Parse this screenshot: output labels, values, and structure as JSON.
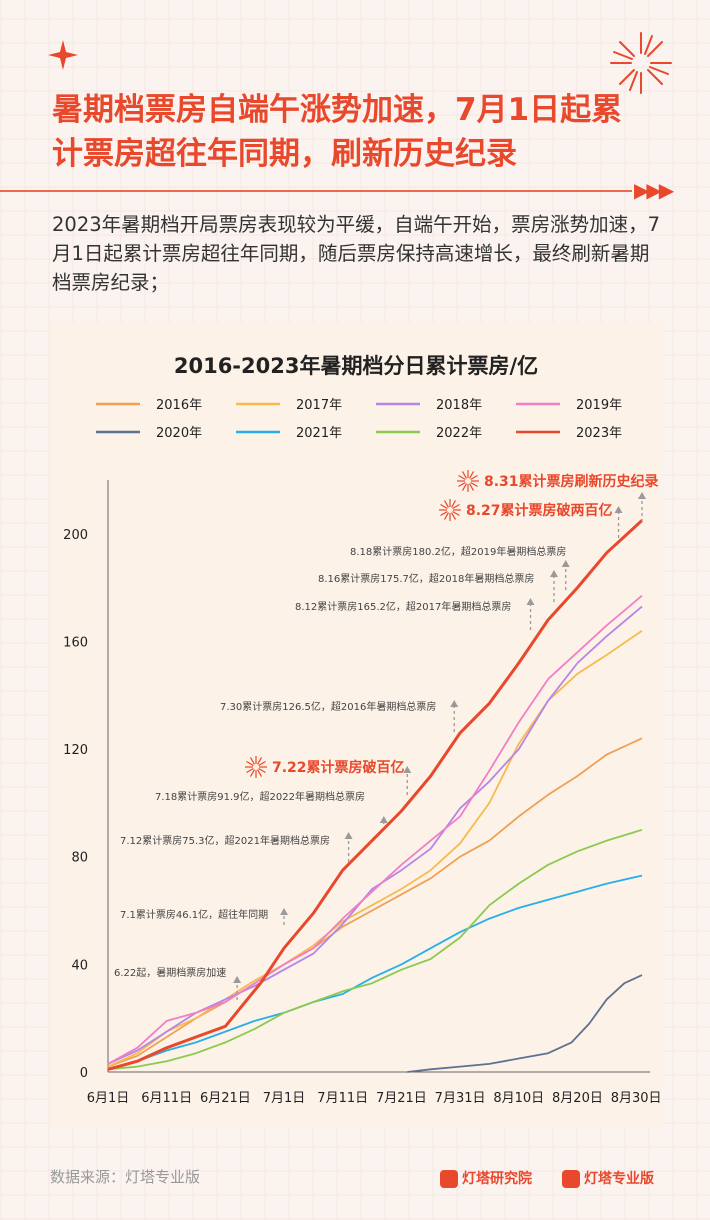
{
  "page": {
    "title": "暑期档票房自端午涨势加速，7月1日起累计票房超往年同期，刷新历史纪录",
    "summary": "2023年暑期档开局票房表现较为平缓，自端午开始，票房涨势加速，7月1日起累计票房超往年同期，随后票房保持高速增长，最终刷新暑期档票房纪录；",
    "source": "数据来源：灯塔专业版",
    "logo1": "灯塔研究院",
    "logo2": "灯塔专业版"
  },
  "colors": {
    "accent": "#e8482b",
    "2016": "#f0a056",
    "2017": "#f6bb4c",
    "2018": "#b586e6",
    "2019": "#ef7fc7",
    "2020": "#5e7190",
    "2021": "#28aee8",
    "2022": "#8cc950",
    "2023": "#e8482b"
  },
  "chart_data": {
    "type": "line",
    "title": "2016-2023年暑期档分日累计票房/亿",
    "xlabel": "",
    "ylabel": "",
    "ylim": [
      0,
      220
    ],
    "xlim": [
      1,
      92
    ],
    "x_unit": "day of summer season (6月1日 = 1)",
    "yticks": [
      0,
      40,
      80,
      120,
      160,
      200
    ],
    "xticks": [
      {
        "x": 1,
        "label": "6月1日"
      },
      {
        "x": 11,
        "label": "6月11日"
      },
      {
        "x": 21,
        "label": "6月21日"
      },
      {
        "x": 31,
        "label": "7月1日"
      },
      {
        "x": 41,
        "label": "7月11日"
      },
      {
        "x": 51,
        "label": "7月21日"
      },
      {
        "x": 61,
        "label": "7月31日"
      },
      {
        "x": 71,
        "label": "8月10日"
      },
      {
        "x": 81,
        "label": "8月20日"
      },
      {
        "x": 91,
        "label": "8月30日"
      }
    ],
    "legend_position": "top",
    "series": [
      {
        "name": "2016年",
        "key": "2016",
        "points": [
          [
            1,
            2
          ],
          [
            6,
            6
          ],
          [
            11,
            13
          ],
          [
            16,
            20
          ],
          [
            21,
            26
          ],
          [
            26,
            33
          ],
          [
            31,
            40
          ],
          [
            36,
            46
          ],
          [
            41,
            54
          ],
          [
            46,
            60
          ],
          [
            51,
            66
          ],
          [
            56,
            72
          ],
          [
            61,
            80
          ],
          [
            66,
            86
          ],
          [
            71,
            95
          ],
          [
            76,
            103
          ],
          [
            81,
            110
          ],
          [
            86,
            118
          ],
          [
            92,
            124
          ]
        ]
      },
      {
        "name": "2017年",
        "key": "2017",
        "points": [
          [
            1,
            2
          ],
          [
            6,
            7
          ],
          [
            11,
            15
          ],
          [
            16,
            20
          ],
          [
            21,
            27
          ],
          [
            26,
            34
          ],
          [
            31,
            40
          ],
          [
            36,
            47
          ],
          [
            41,
            56
          ],
          [
            46,
            62
          ],
          [
            51,
            68
          ],
          [
            56,
            75
          ],
          [
            61,
            85
          ],
          [
            66,
            100
          ],
          [
            71,
            122
          ],
          [
            76,
            138
          ],
          [
            81,
            148
          ],
          [
            86,
            155
          ],
          [
            92,
            164
          ]
        ]
      },
      {
        "name": "2018年",
        "key": "2018",
        "points": [
          [
            1,
            3
          ],
          [
            6,
            8
          ],
          [
            11,
            15
          ],
          [
            16,
            22
          ],
          [
            21,
            27
          ],
          [
            26,
            32
          ],
          [
            31,
            38
          ],
          [
            36,
            44
          ],
          [
            41,
            55
          ],
          [
            46,
            68
          ],
          [
            51,
            75
          ],
          [
            56,
            83
          ],
          [
            61,
            98
          ],
          [
            66,
            108
          ],
          [
            71,
            120
          ],
          [
            76,
            138
          ],
          [
            81,
            152
          ],
          [
            86,
            162
          ],
          [
            92,
            173
          ]
        ]
      },
      {
        "name": "2019年",
        "key": "2019",
        "points": [
          [
            1,
            3
          ],
          [
            6,
            9
          ],
          [
            11,
            19
          ],
          [
            16,
            22
          ],
          [
            21,
            26
          ],
          [
            26,
            33
          ],
          [
            31,
            40
          ],
          [
            36,
            46
          ],
          [
            41,
            57
          ],
          [
            46,
            67
          ],
          [
            51,
            77
          ],
          [
            56,
            86
          ],
          [
            61,
            95
          ],
          [
            66,
            112
          ],
          [
            71,
            130
          ],
          [
            76,
            146
          ],
          [
            81,
            156
          ],
          [
            86,
            166
          ],
          [
            92,
            177
          ]
        ]
      },
      {
        "name": "2020年",
        "key": "2020",
        "points": [
          [
            52,
            0
          ],
          [
            56,
            1
          ],
          [
            61,
            2
          ],
          [
            66,
            3
          ],
          [
            71,
            5
          ],
          [
            76,
            7
          ],
          [
            80,
            11
          ],
          [
            83,
            18
          ],
          [
            86,
            27
          ],
          [
            89,
            33
          ],
          [
            92,
            36
          ]
        ]
      },
      {
        "name": "2021年",
        "key": "2021",
        "points": [
          [
            1,
            1
          ],
          [
            6,
            4
          ],
          [
            11,
            8
          ],
          [
            16,
            11
          ],
          [
            21,
            15
          ],
          [
            26,
            19
          ],
          [
            31,
            22
          ],
          [
            36,
            26
          ],
          [
            41,
            29
          ],
          [
            46,
            35
          ],
          [
            51,
            40
          ],
          [
            56,
            46
          ],
          [
            61,
            52
          ],
          [
            66,
            57
          ],
          [
            71,
            61
          ],
          [
            76,
            64
          ],
          [
            81,
            67
          ],
          [
            86,
            70
          ],
          [
            92,
            73
          ]
        ]
      },
      {
        "name": "2022年",
        "key": "2022",
        "points": [
          [
            1,
            1
          ],
          [
            6,
            2
          ],
          [
            11,
            4
          ],
          [
            16,
            7
          ],
          [
            21,
            11
          ],
          [
            26,
            16
          ],
          [
            31,
            22
          ],
          [
            36,
            26
          ],
          [
            41,
            30
          ],
          [
            46,
            33
          ],
          [
            51,
            38
          ],
          [
            56,
            42
          ],
          [
            61,
            50
          ],
          [
            66,
            62
          ],
          [
            71,
            70
          ],
          [
            76,
            77
          ],
          [
            81,
            82
          ],
          [
            86,
            86
          ],
          [
            92,
            90
          ]
        ]
      },
      {
        "name": "2023年",
        "key": "2023",
        "points": [
          [
            1,
            1
          ],
          [
            6,
            4
          ],
          [
            11,
            9
          ],
          [
            16,
            13
          ],
          [
            21,
            17
          ],
          [
            24,
            25
          ],
          [
            27,
            33
          ],
          [
            31,
            46
          ],
          [
            36,
            59
          ],
          [
            41,
            75
          ],
          [
            46,
            86
          ],
          [
            51,
            97
          ],
          [
            56,
            110
          ],
          [
            61,
            126
          ],
          [
            66,
            137
          ],
          [
            71,
            152
          ],
          [
            76,
            168
          ],
          [
            81,
            180
          ],
          [
            86,
            193
          ],
          [
            92,
            205
          ]
        ]
      }
    ],
    "annotations": [
      {
        "x": 23,
        "text": "6.22起，暑期档票房加速",
        "highlight": false
      },
      {
        "x": 31,
        "text": "7.1累计票房46.1亿，超往年同期",
        "highlight": false
      },
      {
        "x": 42,
        "text": "7.12累计票房75.3亿，超2021年暑期档总票房",
        "highlight": false
      },
      {
        "x": 48,
        "text": "7.18累计票房91.9亿，超2022年暑期档总票房",
        "highlight": false
      },
      {
        "x": 52,
        "text": "7.22累计票房破百亿",
        "highlight": true
      },
      {
        "x": 60,
        "text": "7.30累计票房126.5亿，超2016年暑期档总票房",
        "highlight": false
      },
      {
        "x": 73,
        "text": "8.12累计票房165.2亿，超2017年暑期档总票房",
        "highlight": false
      },
      {
        "x": 77,
        "text": "8.16累计票房175.7亿，超2018年暑期档总票房",
        "highlight": false
      },
      {
        "x": 79,
        "text": "8.18累计票房180.2亿，超2019年暑期档总票房",
        "highlight": false
      },
      {
        "x": 88,
        "text": "8.27累计票房破两百亿",
        "highlight": true
      },
      {
        "x": 92,
        "text": "8.31累计票房刷新历史纪录",
        "highlight": true
      }
    ]
  }
}
